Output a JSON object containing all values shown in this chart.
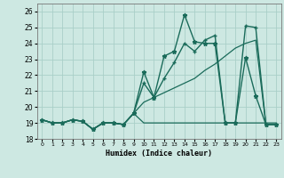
{
  "xlabel": "Humidex (Indice chaleur)",
  "xlim": [
    -0.5,
    23.5
  ],
  "ylim": [
    18.0,
    26.5
  ],
  "yticks": [
    18,
    19,
    20,
    21,
    22,
    23,
    24,
    25,
    26
  ],
  "xtick_labels": [
    "0",
    "1",
    "2",
    "3",
    "4",
    "5",
    "6",
    "7",
    "8",
    "9",
    "10",
    "11",
    "12",
    "13",
    "14",
    "15",
    "16",
    "17",
    "18",
    "19",
    "20",
    "21",
    "22",
    "23"
  ],
  "background_color": "#cde8e2",
  "grid_color": "#aacfc8",
  "line_color": "#1a6b5a",
  "series": [
    {
      "x": [
        0,
        1,
        2,
        3,
        4,
        5,
        6,
        7,
        8,
        9,
        10,
        11,
        12,
        13,
        14,
        15,
        16,
        17,
        18,
        19,
        20,
        21,
        22,
        23
      ],
      "y": [
        19.2,
        19.0,
        19.0,
        19.2,
        19.1,
        18.6,
        19.0,
        19.0,
        18.9,
        19.6,
        19.0,
        19.0,
        19.0,
        19.0,
        19.0,
        19.0,
        19.0,
        19.0,
        19.0,
        19.0,
        19.0,
        19.0,
        19.0,
        19.0
      ],
      "marker": null,
      "lw": 0.9
    },
    {
      "x": [
        0,
        1,
        2,
        3,
        4,
        5,
        6,
        7,
        8,
        9,
        10,
        11,
        12,
        13,
        14,
        15,
        16,
        17,
        18,
        19,
        20,
        21,
        22,
        23
      ],
      "y": [
        19.2,
        19.0,
        19.0,
        19.2,
        19.1,
        18.6,
        19.0,
        19.0,
        18.9,
        19.6,
        22.2,
        20.6,
        23.2,
        23.5,
        25.8,
        24.1,
        24.0,
        24.0,
        19.0,
        19.0,
        23.1,
        20.7,
        18.9,
        18.9
      ],
      "marker": "*",
      "lw": 1.0
    },
    {
      "x": [
        0,
        1,
        2,
        3,
        4,
        5,
        6,
        7,
        8,
        9,
        10,
        11,
        12,
        13,
        14,
        15,
        16,
        17,
        18,
        19,
        20,
        21,
        22,
        23
      ],
      "y": [
        19.2,
        19.0,
        19.0,
        19.2,
        19.1,
        18.6,
        19.0,
        19.0,
        18.9,
        19.6,
        21.5,
        20.6,
        21.8,
        22.8,
        24.0,
        23.5,
        24.2,
        24.5,
        19.0,
        19.0,
        25.1,
        25.0,
        18.9,
        18.9
      ],
      "marker": "+",
      "lw": 1.0
    },
    {
      "x": [
        0,
        1,
        2,
        3,
        4,
        5,
        6,
        7,
        8,
        9,
        10,
        11,
        12,
        13,
        14,
        15,
        16,
        17,
        18,
        19,
        20,
        21,
        22,
        23
      ],
      "y": [
        19.2,
        19.0,
        19.0,
        19.2,
        19.1,
        18.6,
        19.0,
        19.0,
        18.9,
        19.6,
        20.3,
        20.6,
        20.9,
        21.2,
        21.5,
        21.8,
        22.3,
        22.7,
        23.2,
        23.7,
        24.0,
        24.2,
        18.9,
        18.9
      ],
      "marker": null,
      "lw": 0.9
    }
  ]
}
